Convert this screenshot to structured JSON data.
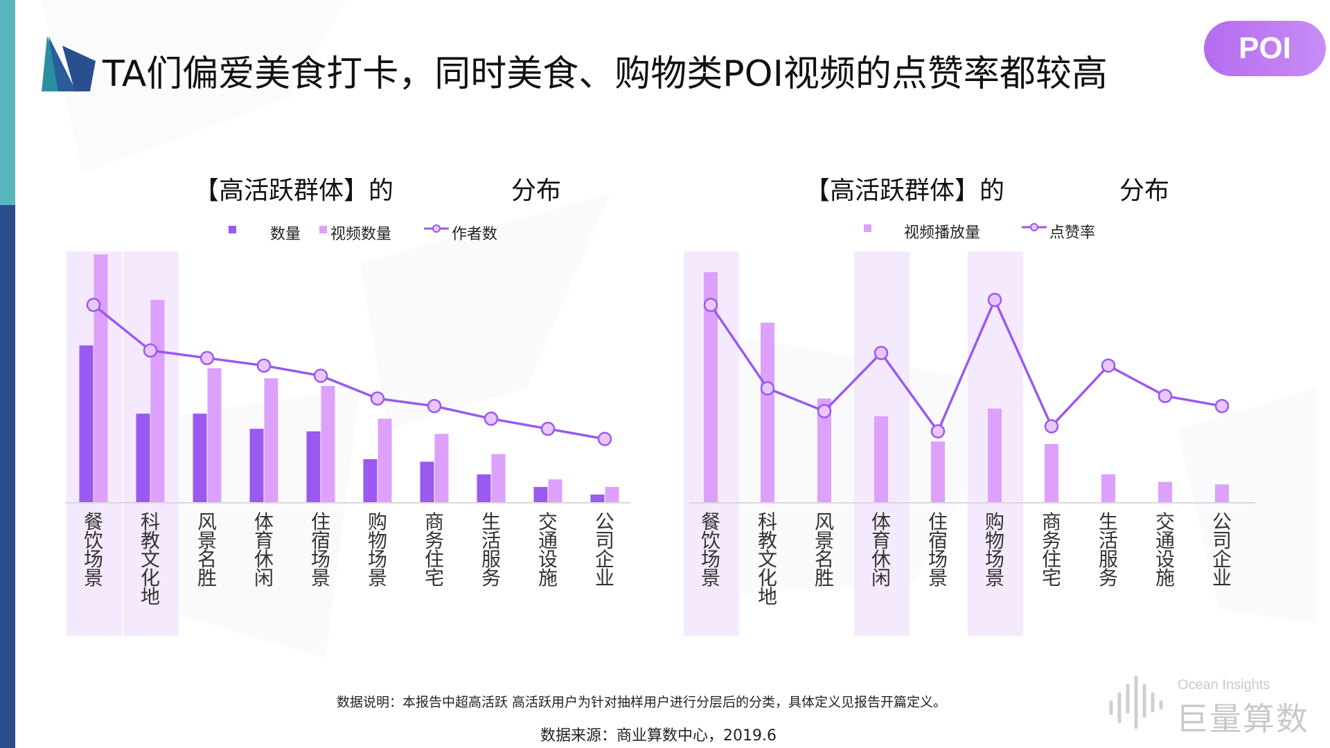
{
  "header": {
    "title": "TA们偏爱美食打卡，同时美食、购物类POI视频的点赞率都较高",
    "badge": "POI"
  },
  "charts": {
    "left": {
      "title_a": "【高活跃群体】的",
      "title_b": "分布",
      "legend": [
        "数量",
        "视频数量",
        "作者数"
      ]
    },
    "right": {
      "title_a": "【高活跃群体】的",
      "title_b": "分布",
      "legend": [
        "视频播放量",
        "点赞率"
      ]
    }
  },
  "chart_data": [
    {
      "type": "bar",
      "categories": [
        "餐饮场景",
        "科教文化地",
        "风景名胜",
        "体育休闲",
        "住宿场景",
        "购物场景",
        "商务住宅",
        "生活服务",
        "交通设施",
        "公司企业"
      ],
      "series": [
        {
          "name": "数量",
          "type": "bar",
          "values": [
            0.62,
            0.35,
            0.35,
            0.29,
            0.28,
            0.17,
            0.16,
            0.11,
            0.06,
            0.03
          ]
        },
        {
          "name": "视频数量",
          "type": "bar",
          "values": [
            0.98,
            0.8,
            0.53,
            0.49,
            0.46,
            0.33,
            0.27,
            0.19,
            0.09,
            0.06
          ]
        },
        {
          "name": "作者数",
          "type": "line",
          "values": [
            0.78,
            0.6,
            0.57,
            0.54,
            0.5,
            0.41,
            0.38,
            0.33,
            0.29,
            0.25
          ]
        }
      ],
      "highlight_categories": [
        "餐饮场景",
        "科教文化地"
      ],
      "ylim": [
        0,
        1
      ],
      "colors": {
        "数量": "#9a59f0",
        "视频数量": "#dda0fb",
        "作者数": "#9a59f0"
      }
    },
    {
      "type": "bar",
      "categories": [
        "餐饮场景",
        "科教文化地",
        "风景名胜",
        "体育休闲",
        "住宿场景",
        "购物场景",
        "商务住宅",
        "生活服务",
        "交通设施",
        "公司企业"
      ],
      "series": [
        {
          "name": "视频播放量",
          "type": "bar",
          "values": [
            0.91,
            0.71,
            0.41,
            0.34,
            0.24,
            0.37,
            0.23,
            0.11,
            0.08,
            0.07
          ]
        },
        {
          "name": "点赞率",
          "type": "line",
          "values": [
            0.78,
            0.45,
            0.36,
            0.59,
            0.28,
            0.8,
            0.3,
            0.54,
            0.42,
            0.38
          ]
        }
      ],
      "highlight_categories": [
        "餐饮场景",
        "体育休闲",
        "购物场景"
      ],
      "ylim": [
        0,
        1
      ],
      "colors": {
        "视频播放量": "#dda0fb",
        "点赞率": "#9a59f0"
      }
    }
  ],
  "footer": {
    "note": "数据说明：本报告中超高活跃 高活跃用户为针对抽样用户进行分层后的分类，具体定义见报告开篇定义。",
    "source": "数据来源：商业算数中心，2019.6",
    "brand_en": "Ocean Insights",
    "brand_cn": "巨量算数"
  }
}
